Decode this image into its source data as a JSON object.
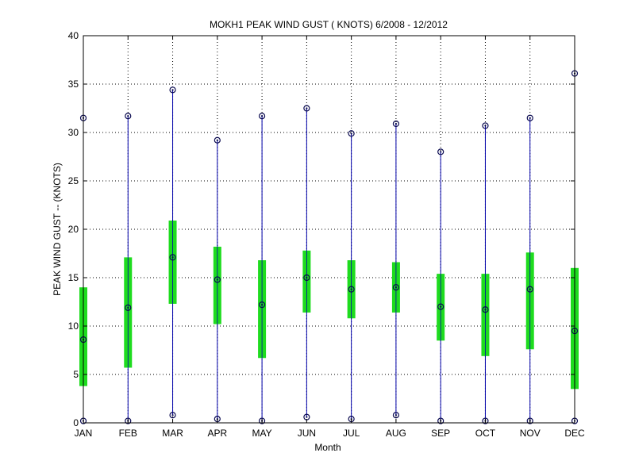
{
  "chart_data": {
    "type": "box",
    "title": "MOKH1  PEAK WIND GUST ( KNOTS) 6/2008 - 12/2012",
    "xlabel": "Month",
    "ylabel": "PEAK WIND GUST -- (KNOTS)",
    "ylim": [
      0,
      40
    ],
    "yticks": [
      0,
      5,
      10,
      15,
      20,
      25,
      30,
      35,
      40
    ],
    "grid": true,
    "categories": [
      "JAN",
      "FEB",
      "MAR",
      "APR",
      "MAY",
      "JUN",
      "JUL",
      "AUG",
      "SEP",
      "OCT",
      "NOV",
      "DEC"
    ],
    "series": [
      {
        "min": [
          0.2,
          0.2,
          0.8,
          0.4,
          0.2,
          0.6,
          0.4,
          0.8,
          0.2,
          0.2,
          0.2,
          0.2
        ],
        "q1": [
          3.8,
          5.7,
          12.3,
          10.2,
          6.7,
          11.4,
          10.8,
          11.4,
          8.5,
          6.9,
          7.6,
          3.5
        ],
        "median": [
          8.6,
          11.9,
          17.1,
          14.8,
          12.2,
          15.0,
          13.8,
          14.0,
          12.0,
          11.7,
          13.8,
          9.5
        ],
        "q3": [
          14.0,
          17.1,
          20.9,
          18.2,
          16.8,
          17.8,
          16.8,
          16.6,
          15.4,
          15.4,
          17.6,
          16.0
        ],
        "max": [
          31.5,
          31.7,
          34.4,
          29.2,
          31.7,
          32.5,
          29.9,
          30.9,
          28.0,
          30.7,
          31.5,
          36.1
        ]
      }
    ],
    "colors": {
      "box": "#1edc1e",
      "whisker": "#0000aa",
      "marker": "#0a0a50",
      "grid": "#000000"
    }
  }
}
